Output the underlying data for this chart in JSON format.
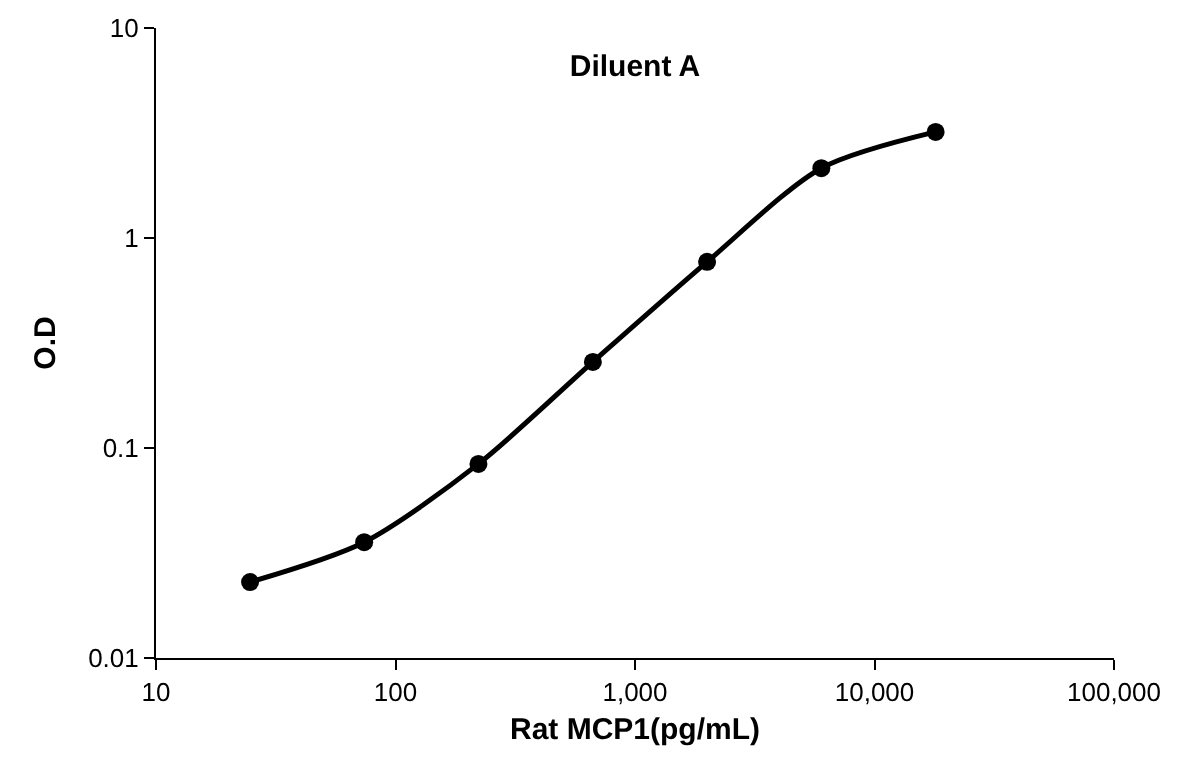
{
  "chart_data": {
    "type": "line",
    "title": "Diluent A",
    "xlabel": "Rat MCP1(pg/mL)",
    "ylabel": "O.D",
    "x": [
      24.7,
      74,
      222,
      667,
      2000,
      6000,
      18000
    ],
    "series": [
      {
        "color": "#000000",
        "values": [
          0.023,
          0.0356,
          0.084,
          0.257,
          0.77,
          2.15,
          3.2
        ]
      }
    ],
    "log": "xy",
    "xlim": [
      10,
      100000
    ],
    "ylim": [
      0.01,
      10
    ],
    "xticks": [
      10,
      100,
      {
        "value": 1000,
        "label": "1,000"
      },
      {
        "value": 10000,
        "label": "10,000"
      },
      {
        "value": 100000,
        "label": "100,000"
      }
    ],
    "yticks": [
      0.01,
      0.1,
      1,
      10
    ],
    "grid": false,
    "marker": "circle",
    "line_style": "solid"
  }
}
